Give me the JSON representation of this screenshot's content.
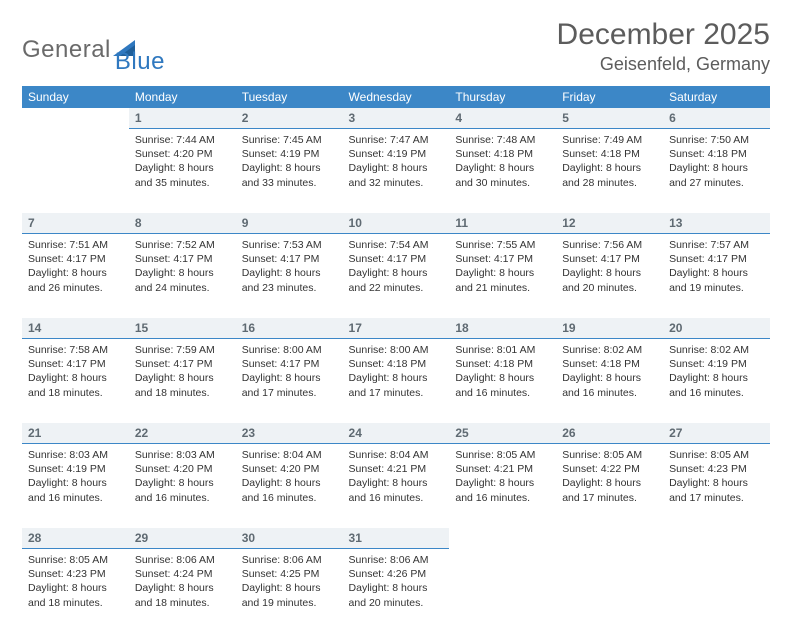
{
  "logo": {
    "word1": "General",
    "word2": "Blue"
  },
  "title": "December 2025",
  "location": "Geisenfeld, Germany",
  "colors": {
    "header_bg": "#3c87c7",
    "header_text": "#ffffff",
    "daynum_bg": "#eef2f5",
    "daynum_border": "#3c87c7",
    "text": "#333333",
    "title_text": "#5c5c5c",
    "logo_gray": "#6a6a6a",
    "logo_blue": "#2f78bf"
  },
  "weekdays": [
    "Sunday",
    "Monday",
    "Tuesday",
    "Wednesday",
    "Thursday",
    "Friday",
    "Saturday"
  ],
  "weeks": [
    [
      null,
      {
        "n": "1",
        "sr": "7:44 AM",
        "ss": "4:20 PM",
        "dl": "8 hours and 35 minutes."
      },
      {
        "n": "2",
        "sr": "7:45 AM",
        "ss": "4:19 PM",
        "dl": "8 hours and 33 minutes."
      },
      {
        "n": "3",
        "sr": "7:47 AM",
        "ss": "4:19 PM",
        "dl": "8 hours and 32 minutes."
      },
      {
        "n": "4",
        "sr": "7:48 AM",
        "ss": "4:18 PM",
        "dl": "8 hours and 30 minutes."
      },
      {
        "n": "5",
        "sr": "7:49 AM",
        "ss": "4:18 PM",
        "dl": "8 hours and 28 minutes."
      },
      {
        "n": "6",
        "sr": "7:50 AM",
        "ss": "4:18 PM",
        "dl": "8 hours and 27 minutes."
      }
    ],
    [
      {
        "n": "7",
        "sr": "7:51 AM",
        "ss": "4:17 PM",
        "dl": "8 hours and 26 minutes."
      },
      {
        "n": "8",
        "sr": "7:52 AM",
        "ss": "4:17 PM",
        "dl": "8 hours and 24 minutes."
      },
      {
        "n": "9",
        "sr": "7:53 AM",
        "ss": "4:17 PM",
        "dl": "8 hours and 23 minutes."
      },
      {
        "n": "10",
        "sr": "7:54 AM",
        "ss": "4:17 PM",
        "dl": "8 hours and 22 minutes."
      },
      {
        "n": "11",
        "sr": "7:55 AM",
        "ss": "4:17 PM",
        "dl": "8 hours and 21 minutes."
      },
      {
        "n": "12",
        "sr": "7:56 AM",
        "ss": "4:17 PM",
        "dl": "8 hours and 20 minutes."
      },
      {
        "n": "13",
        "sr": "7:57 AM",
        "ss": "4:17 PM",
        "dl": "8 hours and 19 minutes."
      }
    ],
    [
      {
        "n": "14",
        "sr": "7:58 AM",
        "ss": "4:17 PM",
        "dl": "8 hours and 18 minutes."
      },
      {
        "n": "15",
        "sr": "7:59 AM",
        "ss": "4:17 PM",
        "dl": "8 hours and 18 minutes."
      },
      {
        "n": "16",
        "sr": "8:00 AM",
        "ss": "4:17 PM",
        "dl": "8 hours and 17 minutes."
      },
      {
        "n": "17",
        "sr": "8:00 AM",
        "ss": "4:18 PM",
        "dl": "8 hours and 17 minutes."
      },
      {
        "n": "18",
        "sr": "8:01 AM",
        "ss": "4:18 PM",
        "dl": "8 hours and 16 minutes."
      },
      {
        "n": "19",
        "sr": "8:02 AM",
        "ss": "4:18 PM",
        "dl": "8 hours and 16 minutes."
      },
      {
        "n": "20",
        "sr": "8:02 AM",
        "ss": "4:19 PM",
        "dl": "8 hours and 16 minutes."
      }
    ],
    [
      {
        "n": "21",
        "sr": "8:03 AM",
        "ss": "4:19 PM",
        "dl": "8 hours and 16 minutes."
      },
      {
        "n": "22",
        "sr": "8:03 AM",
        "ss": "4:20 PM",
        "dl": "8 hours and 16 minutes."
      },
      {
        "n": "23",
        "sr": "8:04 AM",
        "ss": "4:20 PM",
        "dl": "8 hours and 16 minutes."
      },
      {
        "n": "24",
        "sr": "8:04 AM",
        "ss": "4:21 PM",
        "dl": "8 hours and 16 minutes."
      },
      {
        "n": "25",
        "sr": "8:05 AM",
        "ss": "4:21 PM",
        "dl": "8 hours and 16 minutes."
      },
      {
        "n": "26",
        "sr": "8:05 AM",
        "ss": "4:22 PM",
        "dl": "8 hours and 17 minutes."
      },
      {
        "n": "27",
        "sr": "8:05 AM",
        "ss": "4:23 PM",
        "dl": "8 hours and 17 minutes."
      }
    ],
    [
      {
        "n": "28",
        "sr": "8:05 AM",
        "ss": "4:23 PM",
        "dl": "8 hours and 18 minutes."
      },
      {
        "n": "29",
        "sr": "8:06 AM",
        "ss": "4:24 PM",
        "dl": "8 hours and 18 minutes."
      },
      {
        "n": "30",
        "sr": "8:06 AM",
        "ss": "4:25 PM",
        "dl": "8 hours and 19 minutes."
      },
      {
        "n": "31",
        "sr": "8:06 AM",
        "ss": "4:26 PM",
        "dl": "8 hours and 20 minutes."
      },
      null,
      null,
      null
    ]
  ],
  "labels": {
    "sunrise": "Sunrise: ",
    "sunset": "Sunset: ",
    "daylight": "Daylight: "
  }
}
